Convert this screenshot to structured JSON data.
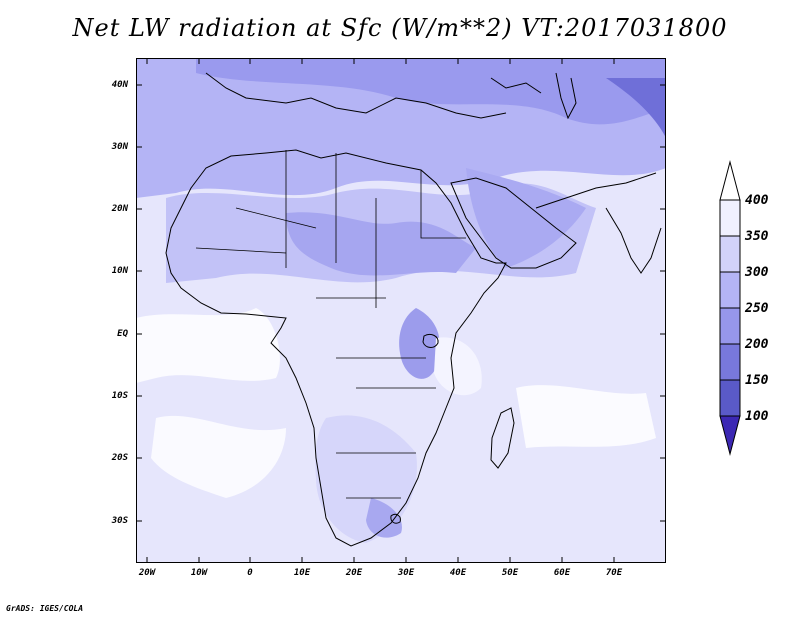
{
  "title": "Net LW radiation at Sfc (W/m**2) VT:2017031800",
  "credit": "GrADS: IGES/COLA",
  "map": {
    "region": "Africa and Middle East",
    "lon_range": [
      -22,
      80
    ],
    "lat_range": [
      -37,
      45
    ],
    "y_ticks": [
      "40N",
      "30N",
      "20N",
      "10N",
      "EQ",
      "10S",
      "20S",
      "30S"
    ],
    "x_ticks": [
      "20W",
      "10W",
      "0",
      "10E",
      "20E",
      "30E",
      "40E",
      "50E",
      "60E",
      "70E"
    ]
  },
  "legend": {
    "labels": [
      "400",
      "350",
      "300",
      "250",
      "200",
      "150",
      "100"
    ],
    "colors": [
      "#f0f0ff",
      "#d2d2fa",
      "#b4b4f5",
      "#9696eb",
      "#7878dc",
      "#5a5ac8",
      "#3c28b4"
    ],
    "unit": "W/m**2"
  }
}
